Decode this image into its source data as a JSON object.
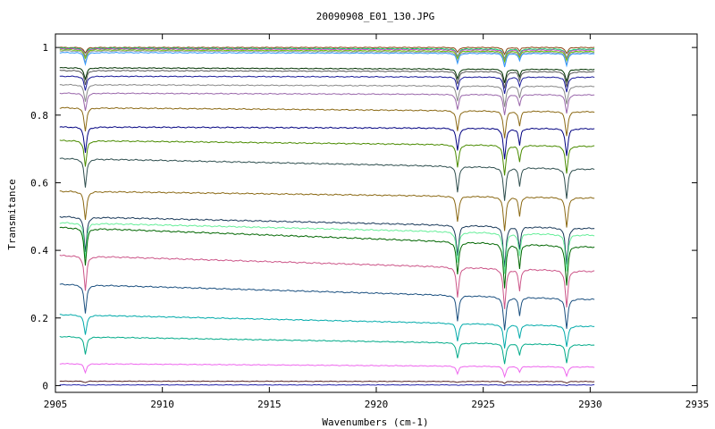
{
  "chart_data": {
    "type": "line",
    "title": "20090908_E01_130.JPG",
    "xlabel": "Wavenumbers (cm-1)",
    "ylabel": "Transmitance",
    "xlim": [
      2905,
      2935
    ],
    "ylim": [
      -0.02,
      1.04
    ],
    "x_ticks": [
      2905,
      2910,
      2915,
      2920,
      2925,
      2930,
      2935
    ],
    "y_ticks": [
      0,
      0.2,
      0.4,
      0.6,
      0.8,
      1
    ],
    "x_tick_labels": [
      "2905",
      "2910",
      "2915",
      "2920",
      "2925",
      "2930",
      "2935"
    ],
    "y_tick_labels": [
      "0",
      "0.2",
      "0.4",
      "0.6",
      "0.8",
      "1"
    ],
    "x_range_data": [
      2905.2,
      2930.2
    ],
    "grid": false,
    "legend": "none",
    "absorption_peaks": [
      {
        "x": 2906.4,
        "rel_depth": 0.85,
        "width": 0.07
      },
      {
        "x": 2923.8,
        "rel_depth": 0.75,
        "width": 0.07
      },
      {
        "x": 2926.0,
        "rel_depth": 1.0,
        "width": 0.07
      },
      {
        "x": 2926.7,
        "rel_depth": 0.55,
        "width": 0.06
      },
      {
        "x": 2928.9,
        "rel_depth": 0.9,
        "width": 0.07
      }
    ],
    "series": [
      {
        "color": "#8b4513",
        "start": 1.0,
        "end": 1.0,
        "depth": 0.02
      },
      {
        "color": "#00cc66",
        "start": 0.998,
        "end": 0.995,
        "depth": 0.03
      },
      {
        "color": "#cc44cc",
        "start": 0.996,
        "end": 0.992,
        "depth": 0.03
      },
      {
        "color": "#66cc00",
        "start": 0.993,
        "end": 0.988,
        "depth": 0.03
      },
      {
        "color": "#a0a0a0",
        "start": 0.99,
        "end": 0.985,
        "depth": 0.04
      },
      {
        "color": "#3399ff",
        "start": 0.985,
        "end": 0.982,
        "depth": 0.04
      },
      {
        "color": "#003300",
        "start": 0.94,
        "end": 0.935,
        "depth": 0.04
      },
      {
        "color": "#555555",
        "start": 0.932,
        "end": 0.928,
        "depth": 0.05
      },
      {
        "color": "#1a1a99",
        "start": 0.915,
        "end": 0.912,
        "depth": 0.05
      },
      {
        "color": "#888888",
        "start": 0.89,
        "end": 0.885,
        "depth": 0.06
      },
      {
        "color": "#9966aa",
        "start": 0.865,
        "end": 0.86,
        "depth": 0.06
      },
      {
        "color": "#8b6914",
        "start": 0.822,
        "end": 0.81,
        "depth": 0.08
      },
      {
        "color": "#000080",
        "start": 0.765,
        "end": 0.76,
        "depth": 0.09
      },
      {
        "color": "#4a8b00",
        "start": 0.725,
        "end": 0.708,
        "depth": 0.09
      },
      {
        "color": "#2f4f4f",
        "start": 0.672,
        "end": 0.64,
        "depth": 0.1
      },
      {
        "color": "#8b6914",
        "start": 0.575,
        "end": 0.555,
        "depth": 0.1
      },
      {
        "color": "#1a3a5a",
        "start": 0.5,
        "end": 0.465,
        "depth": 0.12
      },
      {
        "color": "#66ee99",
        "start": 0.482,
        "end": 0.445,
        "depth": 0.12
      },
      {
        "color": "#006600",
        "start": 0.468,
        "end": 0.41,
        "depth": 0.13
      },
      {
        "color": "#cc5588",
        "start": 0.385,
        "end": 0.338,
        "depth": 0.12
      },
      {
        "color": "#1a4f7f",
        "start": 0.3,
        "end": 0.255,
        "depth": 0.1
      },
      {
        "color": "#00aaaa",
        "start": 0.21,
        "end": 0.175,
        "depth": 0.07
      },
      {
        "color": "#00aa88",
        "start": 0.145,
        "end": 0.12,
        "depth": 0.06
      },
      {
        "color": "#ee66ee",
        "start": 0.065,
        "end": 0.055,
        "depth": 0.03
      },
      {
        "color": "#552222",
        "start": 0.013,
        "end": 0.012,
        "depth": 0.005
      },
      {
        "color": "#2222aa",
        "start": 0.002,
        "end": 0.002,
        "depth": 0.002
      }
    ]
  }
}
